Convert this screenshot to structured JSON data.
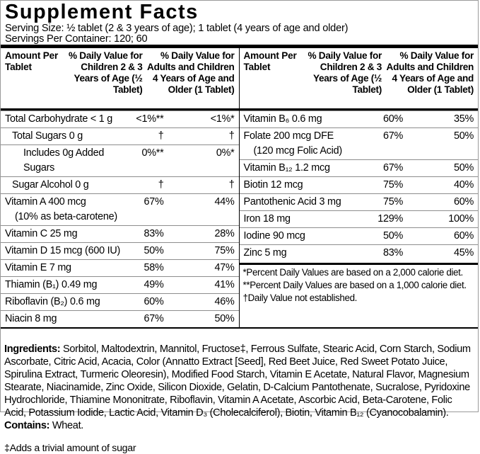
{
  "title": "Supplement Facts",
  "serving": {
    "size": "Serving Size: ½ tablet (2 & 3 years of age); 1 tablet (4 years of age and older)",
    "per_container": "Servings Per Container: 120; 60"
  },
  "columns": {
    "amount": "Amount Per Tablet",
    "dv_children": "% Daily Value for Children 2 & 3 Years of Age (½ Tablet)",
    "dv_adults": "% Daily Value for Adults and Children 4 Years of Age and Older (1 Tablet)"
  },
  "rows_left": [
    {
      "name": "Total Carbohydrate < 1 g",
      "dv1": "<1%**",
      "dv2": "<1%*"
    },
    {
      "name": "Total Sugars 0 g",
      "dv1": "†",
      "dv2": "†"
    },
    {
      "name": "Includes 0g Added Sugars",
      "dv1": "0%**",
      "dv2": "0%*"
    },
    {
      "name": "Sugar Alcohol 0 g",
      "dv1": "†",
      "dv2": "†"
    },
    {
      "name": "Vitamin A 400 mcg",
      "name2": "(10% as beta-carotene)",
      "dv1": "67%",
      "dv2": "44%"
    },
    {
      "name": "Vitamin C 25 mg",
      "dv1": "83%",
      "dv2": "28%"
    },
    {
      "name": "Vitamin D 15 mcg (600 IU)",
      "dv1": "50%",
      "dv2": "75%"
    },
    {
      "name": "Vitamin E 7 mg",
      "dv1": "58%",
      "dv2": "47%"
    },
    {
      "name": "Thiamin (B₁) 0.49 mg",
      "dv1": "49%",
      "dv2": "41%"
    },
    {
      "name": "Riboflavin (B₂) 0.6 mg",
      "dv1": "60%",
      "dv2": "46%"
    },
    {
      "name": "Niacin 8 mg",
      "dv1": "67%",
      "dv2": "50%"
    }
  ],
  "rows_right": [
    {
      "name": "Vitamin B₆ 0.6 mg",
      "dv1": "60%",
      "dv2": "35%"
    },
    {
      "name": "Folate 200 mcg DFE",
      "name2": "(120 mcg Folic Acid)",
      "dv1": "67%",
      "dv2": "50%"
    },
    {
      "name": "Vitamin B₁₂ 1.2 mcg",
      "dv1": "67%",
      "dv2": "50%"
    },
    {
      "name": "Biotin 12 mcg",
      "dv1": "75%",
      "dv2": "40%"
    },
    {
      "name": "Pantothenic Acid 3 mg",
      "dv1": "75%",
      "dv2": "60%"
    },
    {
      "name": "Iron 18 mg",
      "dv1": "129%",
      "dv2": "100%"
    },
    {
      "name": "Iodine 90 mcg",
      "dv1": "50%",
      "dv2": "60%"
    },
    {
      "name": "Zinc 5 mg",
      "dv1": "83%",
      "dv2": "45%"
    }
  ],
  "footnotes": {
    "fn1": "*Percent Daily Values are based on a 2,000 calorie diet.",
    "fn2": "**Percent Daily Values are based on a 1,000 calorie diet.",
    "fn3": "†Daily Value not established."
  },
  "ingredients": {
    "label": "Ingredients:",
    "text": " Sorbitol, Maltodextrin, Mannitol, Fructose‡, Ferrous Sulfate, Stearic Acid, Corn Starch, Sodium Ascorbate, Citric Acid, Acacia, Color (Annatto Extract [Seed], Red Beet Juice, Red Sweet Potato Juice, Spirulina Extract, Turmeric Oleoresin), Modified Food Starch, Vitamin E Acetate, Natural Flavor, Magnesium Stearate, Niacinamide, Zinc Oxide, Silicon Dioxide, Gelatin, D-Calcium Pantothenate, Sucralose, Pyridoxine Hydrochloride, Thiamine Mononitrate, Riboflavin, Vitamin A Acetate, Ascorbic Acid, Beta-Carotene, Folic Acid, Potassium Iodide, Lactic Acid, Vitamin D₃ (Cholecalciferol), Biotin, Vitamin B₁₂ (Cyanocobalamin). ",
    "contains_label": "Contains:",
    "contains": " Wheat."
  },
  "sugar_note": "‡Adds a trivial amount of sugar",
  "colors": {
    "text": "#000000",
    "row_rule": "#8d8d8d",
    "bar": "#000000",
    "background": "#ffffff"
  }
}
